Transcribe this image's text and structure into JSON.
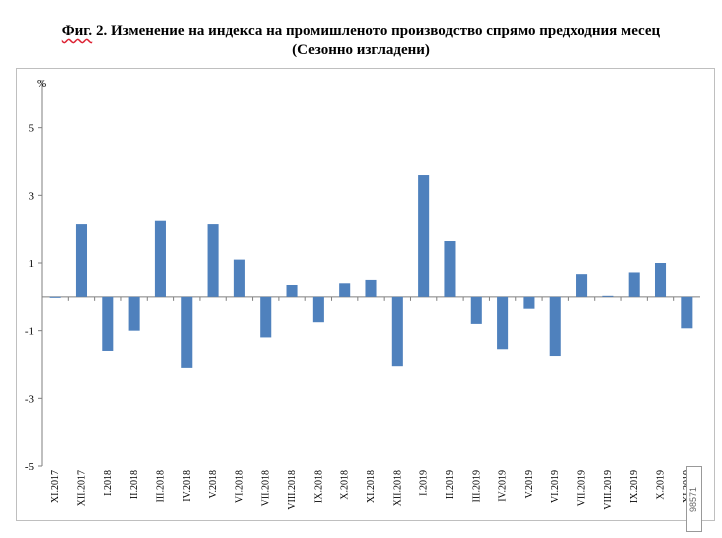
{
  "title_prefix": "Фиг.",
  "title_rest": " 2. Изменение на индекса на промишленото производство спрямо предходния месец",
  "subtitle": "(Сезонно изгладени)",
  "watermark": "98571",
  "colors": {
    "bar": "#4f81bd",
    "axis": "#7f7f7f",
    "frame": "#bfbfbf"
  },
  "chart_data": {
    "type": "bar",
    "title": "Фиг. 2. Изменение на индекса на промишленото производство спрямо предходния месец (Сезонно изгладени)",
    "ylabel": "%",
    "xlabel": "",
    "ylim": [
      -5,
      7
    ],
    "yticks": [
      5,
      3,
      1,
      -1,
      -3,
      -5
    ],
    "grid": false,
    "categories": [
      "XI.2017",
      "XII.2017",
      "I.2018",
      "II.2018",
      "III.2018",
      "IV.2018",
      "V.2018",
      "VI.2018",
      "VII.2018",
      "VIII.2018",
      "IX.2018",
      "X.2018",
      "XI.2018",
      "XII.2018",
      "I.2019",
      "II.2019",
      "III.2019",
      "IV.2019",
      "V.2019",
      "VI.2019",
      "VII.2019",
      "VIII.2019",
      "IX.2019",
      "X.2019",
      "XI.2019"
    ],
    "values": [
      0.0,
      2.15,
      -1.6,
      -1.0,
      2.25,
      -2.1,
      2.15,
      1.1,
      -1.2,
      0.35,
      -0.75,
      0.4,
      0.5,
      -2.05,
      3.6,
      1.65,
      -0.8,
      -1.55,
      -0.35,
      -1.75,
      0.67,
      0.03,
      0.72,
      1.0,
      -0.93
    ]
  }
}
